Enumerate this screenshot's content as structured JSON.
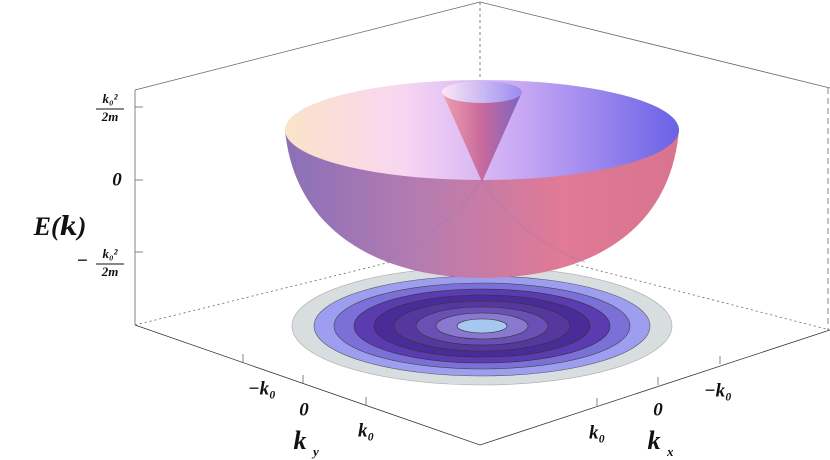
{
  "axes": {
    "z": {
      "label": "E(𝒌)",
      "ticks": [
        {
          "sign": "",
          "numerator": "k₀²",
          "denominator": "2m"
        },
        "0",
        {
          "sign": "−",
          "numerator": "k₀²",
          "denominator": "2m"
        }
      ]
    },
    "y": {
      "label": "k",
      "subscript": "y",
      "ticks": [
        "−k₀",
        "0",
        "k₀"
      ]
    },
    "x": {
      "label": "k",
      "subscript": "x",
      "ticks": [
        "k₀",
        "0",
        "−k₀"
      ]
    }
  }
}
